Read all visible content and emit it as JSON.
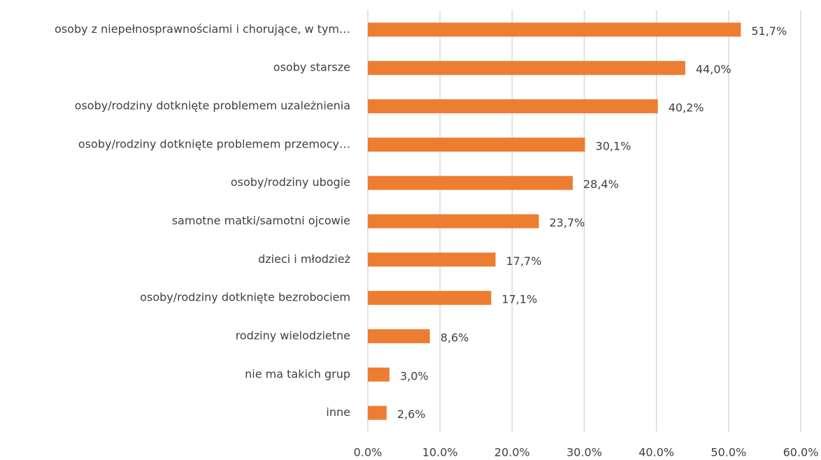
{
  "chart_data": {
    "type": "bar",
    "orientation": "horizontal",
    "categories": [
      "osoby z niepełnosprawnościami i chorujące, w tym…",
      "osoby starsze",
      "osoby/rodziny dotknięte problemem uzależnienia",
      "osoby/rodziny dotknięte problemem przemocy…",
      "osoby/rodziny ubogie",
      "samotne matki/samotni ojcowie",
      "dzieci i młodzież",
      "osoby/rodziny dotknięte bezrobociem",
      "rodziny wielodzietne",
      "nie ma takich grup",
      "inne"
    ],
    "values": [
      51.7,
      44.0,
      40.2,
      30.1,
      28.4,
      23.7,
      17.7,
      17.1,
      8.6,
      3.0,
      2.6
    ],
    "value_labels": [
      "51,7%",
      "44,0%",
      "40,2%",
      "30,1%",
      "28,4%",
      "23,7%",
      "17,7%",
      "17,1%",
      "8,6%",
      "3,0%",
      "2,6%"
    ],
    "color": "#ed7d31",
    "xlim": [
      0,
      60
    ],
    "xticks": [
      {
        "value": 0,
        "label": "0.0%"
      },
      {
        "value": 10,
        "label": "10.0%"
      },
      {
        "value": 20,
        "label": "20.0%"
      },
      {
        "value": 30,
        "label": "30.0%"
      },
      {
        "value": 40,
        "label": "40.0%"
      },
      {
        "value": 50,
        "label": "50.0%"
      },
      {
        "value": 60,
        "label": "60.0%"
      }
    ],
    "grid": true
  }
}
